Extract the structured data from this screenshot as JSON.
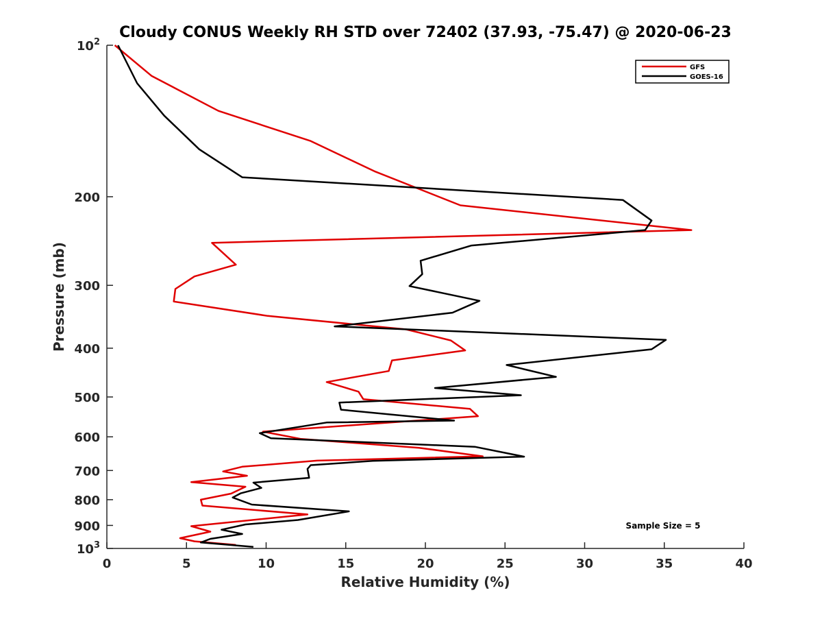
{
  "chart_data": {
    "type": "line",
    "title": "Cloudy CONUS Weekly RH STD over 72402 (37.93, -75.47) @ 2020-06-23",
    "xlabel": "Relative Humidity (%)",
    "ylabel": "Pressure (mb)",
    "xlim": [
      0,
      40
    ],
    "ylim": [
      100,
      1000
    ],
    "y_scale": "log",
    "y_reversed": true,
    "x_ticks": [
      "0",
      "5",
      "10",
      "15",
      "20",
      "25",
      "30",
      "35",
      "40"
    ],
    "y_ticks": [
      {
        "value": 100,
        "base": "10",
        "exp": "2"
      },
      {
        "value": 200,
        "label": "200"
      },
      {
        "value": 300,
        "label": "300"
      },
      {
        "value": 400,
        "label": "400"
      },
      {
        "value": 500,
        "label": "500"
      },
      {
        "value": 600,
        "label": "600"
      },
      {
        "value": 700,
        "label": "700"
      },
      {
        "value": 800,
        "label": "800"
      },
      {
        "value": 900,
        "label": "900"
      },
      {
        "value": 1000,
        "base": "10",
        "exp": "3"
      }
    ],
    "legend_position": "top-right",
    "annotation": "Sample Size = 5",
    "series": [
      {
        "name": "GFS",
        "color": "#e00000",
        "points": [
          [
            0.5,
            100
          ],
          [
            2.8,
            115
          ],
          [
            7.0,
            135
          ],
          [
            12.8,
            155
          ],
          [
            16.8,
            178
          ],
          [
            22.2,
            208
          ],
          [
            36.7,
            233
          ],
          [
            6.6,
            247
          ],
          [
            8.1,
            273
          ],
          [
            5.5,
            288
          ],
          [
            4.3,
            305
          ],
          [
            4.2,
            323
          ],
          [
            10.1,
            345
          ],
          [
            18.8,
            367
          ],
          [
            21.6,
            386
          ],
          [
            22.5,
            404
          ],
          [
            17.9,
            423
          ],
          [
            17.7,
            444
          ],
          [
            13.8,
            467
          ],
          [
            15.8,
            488
          ],
          [
            16.1,
            505
          ],
          [
            22.8,
            528
          ],
          [
            23.3,
            546
          ],
          [
            9.8,
            586
          ],
          [
            12.2,
            606
          ],
          [
            19.6,
            631
          ],
          [
            23.6,
            656
          ],
          [
            13.2,
            669
          ],
          [
            8.5,
            688
          ],
          [
            7.3,
            703
          ],
          [
            8.8,
            717
          ],
          [
            5.3,
            738
          ],
          [
            8.7,
            754
          ],
          [
            7.8,
            778
          ],
          [
            5.9,
            800
          ],
          [
            6.0,
            822
          ],
          [
            12.6,
            856
          ],
          [
            5.3,
            903
          ],
          [
            6.5,
            926
          ],
          [
            4.6,
            954
          ],
          [
            5.5,
            968
          ],
          [
            8.1,
            984
          ]
        ]
      },
      {
        "name": "GOES-16",
        "color": "#000000",
        "points": [
          [
            0.7,
            100
          ],
          [
            1.9,
            119
          ],
          [
            3.6,
            138
          ],
          [
            5.8,
            161
          ],
          [
            8.5,
            183
          ],
          [
            32.4,
            203
          ],
          [
            34.2,
            223
          ],
          [
            33.8,
            233
          ],
          [
            22.9,
            250
          ],
          [
            19.7,
            268
          ],
          [
            19.8,
            285
          ],
          [
            19.0,
            301
          ],
          [
            23.4,
            322
          ],
          [
            21.7,
            340
          ],
          [
            14.3,
            362
          ],
          [
            35.1,
            385
          ],
          [
            34.2,
            402
          ],
          [
            25.1,
            432
          ],
          [
            28.2,
            456
          ],
          [
            20.6,
            480
          ],
          [
            26.0,
            496
          ],
          [
            14.6,
            513
          ],
          [
            14.7,
            530
          ],
          [
            21.8,
            557
          ],
          [
            13.8,
            562
          ],
          [
            9.6,
            590
          ],
          [
            10.3,
            604
          ],
          [
            23.1,
            628
          ],
          [
            26.2,
            657
          ],
          [
            16.7,
            670
          ],
          [
            12.8,
            683
          ],
          [
            12.6,
            695
          ],
          [
            12.7,
            724
          ],
          [
            9.2,
            740
          ],
          [
            9.7,
            758
          ],
          [
            8.4,
            777
          ],
          [
            7.9,
            792
          ],
          [
            9.1,
            818
          ],
          [
            15.2,
            844
          ],
          [
            12.0,
            878
          ],
          [
            8.7,
            896
          ],
          [
            7.2,
            918
          ],
          [
            8.5,
            936
          ],
          [
            6.5,
            957
          ],
          [
            5.9,
            973
          ],
          [
            9.2,
            993
          ]
        ]
      }
    ]
  }
}
